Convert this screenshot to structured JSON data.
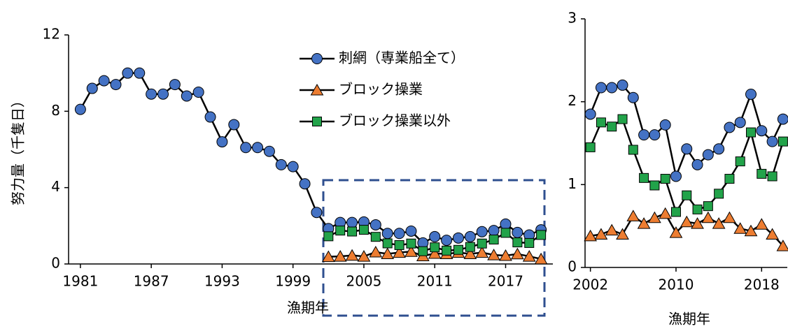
{
  "chart_data": [
    {
      "type": "line",
      "x_label": "漁期年",
      "y_label": "努力量（千隻日）",
      "x": [
        1981,
        1982,
        1983,
        1984,
        1985,
        1986,
        1987,
        1988,
        1989,
        1990,
        1991,
        1992,
        1993,
        1994,
        1995,
        1996,
        1997,
        1998,
        1999,
        2000,
        2001,
        2002,
        2003,
        2004,
        2005,
        2006,
        2007,
        2008,
        2009,
        2010,
        2011,
        2012,
        2013,
        2014,
        2015,
        2016,
        2017,
        2018,
        2019,
        2020
      ],
      "series": [
        {
          "name": "刺網（専業船全て）",
          "color": "#4472c4",
          "marker": "circle",
          "values": [
            8.1,
            9.2,
            9.6,
            9.4,
            10.0,
            10.0,
            8.9,
            8.9,
            9.4,
            8.8,
            9.0,
            7.7,
            6.4,
            7.3,
            6.1,
            6.1,
            5.9,
            5.2,
            5.1,
            4.2,
            2.7,
            1.85,
            2.17,
            2.17,
            2.2,
            2.05,
            1.6,
            1.6,
            1.72,
            1.1,
            1.43,
            1.24,
            1.36,
            1.43,
            1.69,
            1.75,
            2.09,
            1.65,
            1.52,
            1.79
          ]
        },
        {
          "name": "ブロック操業",
          "color": "#ed7d31",
          "marker": "triangle",
          "values": [
            null,
            null,
            null,
            null,
            null,
            null,
            null,
            null,
            null,
            null,
            null,
            null,
            null,
            null,
            null,
            null,
            null,
            null,
            null,
            null,
            null,
            0.38,
            0.4,
            0.45,
            0.4,
            0.62,
            0.53,
            0.6,
            0.65,
            0.42,
            0.55,
            0.53,
            0.6,
            0.53,
            0.6,
            0.47,
            0.44,
            0.52,
            0.4,
            0.26
          ]
        },
        {
          "name": "ブロック操業以外",
          "color": "#22a34a",
          "marker": "square",
          "values": [
            null,
            null,
            null,
            null,
            null,
            null,
            null,
            null,
            null,
            null,
            null,
            null,
            null,
            null,
            null,
            null,
            null,
            null,
            null,
            null,
            null,
            1.45,
            1.75,
            1.7,
            1.79,
            1.42,
            1.08,
            0.99,
            1.07,
            0.67,
            0.87,
            0.7,
            0.74,
            0.89,
            1.07,
            1.28,
            1.63,
            1.13,
            1.1,
            1.52
          ]
        }
      ],
      "xlim": [
        1980,
        2021
      ],
      "xticks": [
        1981,
        1987,
        1993,
        1999,
        2005,
        2011,
        2017
      ],
      "ylim": [
        0,
        12
      ],
      "yticks": [
        0,
        4,
        8,
        12
      ],
      "legend": "top-right"
    },
    {
      "type": "line",
      "x_label": "漁期年",
      "x": [
        2002,
        2003,
        2004,
        2005,
        2006,
        2007,
        2008,
        2009,
        2010,
        2011,
        2012,
        2013,
        2014,
        2015,
        2016,
        2017,
        2018,
        2019,
        2020
      ],
      "series": [
        {
          "color": "#4472c4",
          "marker": "circle",
          "values": [
            1.85,
            2.17,
            2.17,
            2.2,
            2.05,
            1.6,
            1.6,
            1.72,
            1.1,
            1.43,
            1.24,
            1.36,
            1.43,
            1.69,
            1.75,
            2.09,
            1.65,
            1.52,
            1.79
          ]
        },
        {
          "color": "#ed7d31",
          "marker": "triangle",
          "values": [
            0.38,
            0.4,
            0.45,
            0.4,
            0.62,
            0.53,
            0.6,
            0.65,
            0.42,
            0.55,
            0.53,
            0.6,
            0.53,
            0.6,
            0.47,
            0.44,
            0.52,
            0.4,
            0.26
          ]
        },
        {
          "color": "#22a34a",
          "marker": "square",
          "values": [
            1.45,
            1.75,
            1.7,
            1.79,
            1.42,
            1.08,
            0.99,
            1.07,
            0.67,
            0.87,
            0.7,
            0.74,
            0.89,
            1.07,
            1.28,
            1.63,
            1.13,
            1.1,
            1.52
          ]
        }
      ],
      "xlim": [
        2001.5,
        2020.4
      ],
      "xticks": [
        2002,
        2010,
        2018
      ],
      "ylim": [
        0,
        3
      ],
      "yticks": [
        0,
        1,
        2,
        3
      ]
    }
  ]
}
